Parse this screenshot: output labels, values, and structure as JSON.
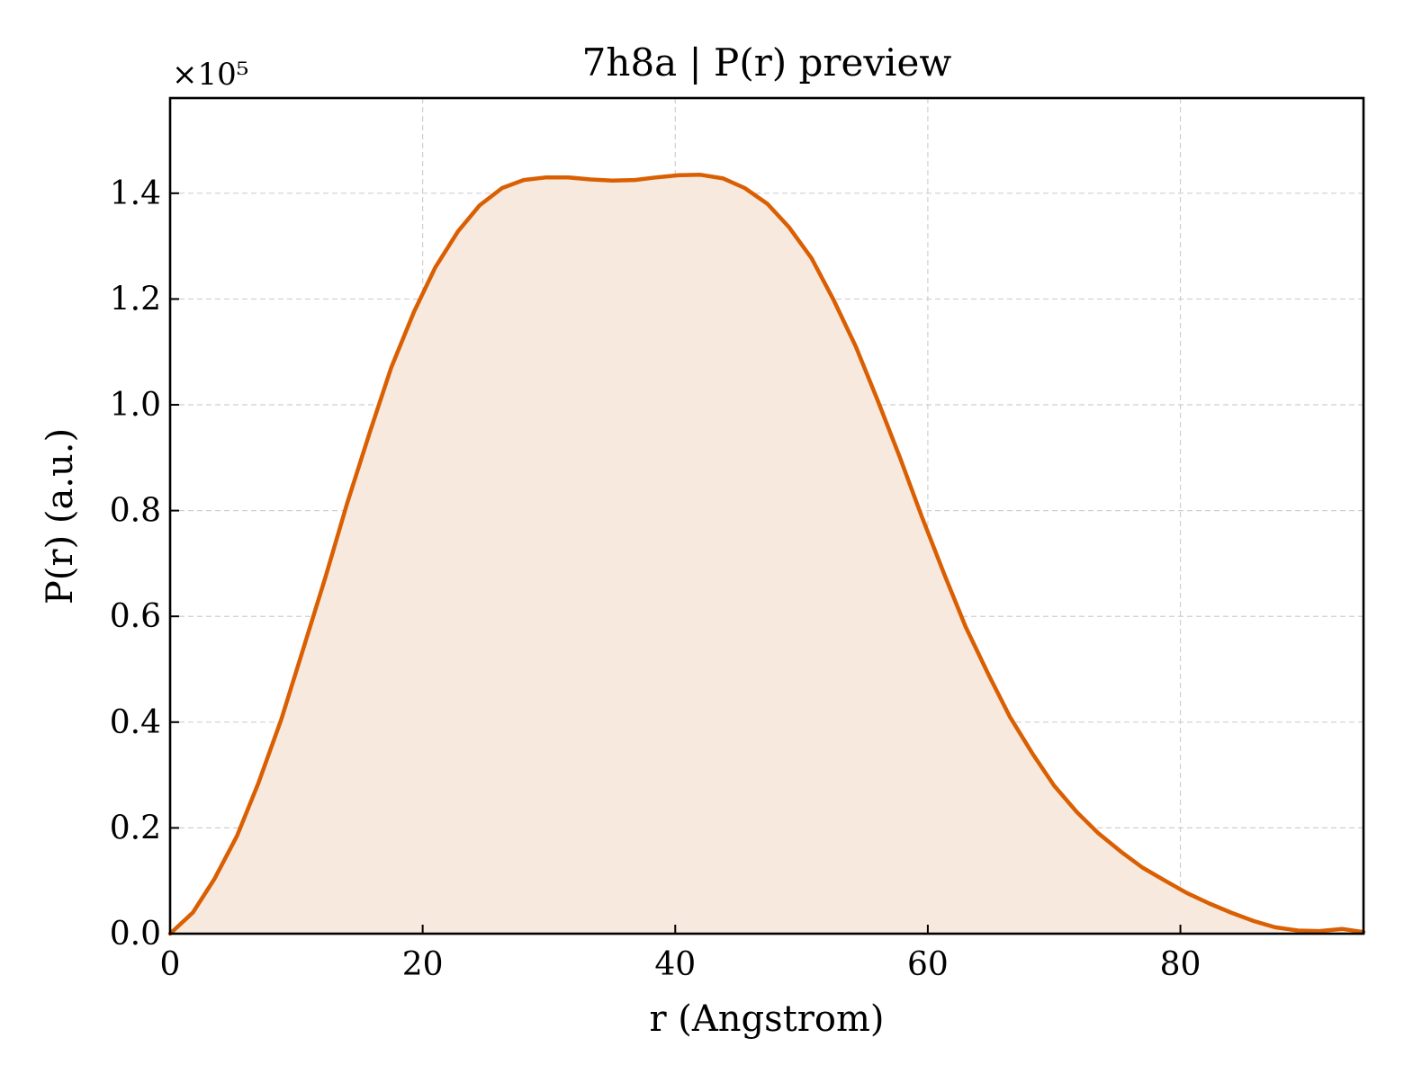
{
  "chart_data": {
    "type": "area",
    "title": "7h8a | P(r) preview",
    "xlabel": "r (Angstrom)",
    "ylabel": "P(r) (a.u.)",
    "y_offset_label": "×10⁵",
    "xlim": [
      0,
      94.5
    ],
    "ylim": [
      0,
      1.58
    ],
    "x_ticks": [
      0,
      20,
      40,
      60,
      80
    ],
    "x_tick_labels": [
      "0",
      "20",
      "40",
      "60",
      "80"
    ],
    "y_ticks": [
      0.0,
      0.2,
      0.4,
      0.6,
      0.8,
      1.0,
      1.2,
      1.4
    ],
    "y_tick_labels": [
      "0.0",
      "0.2",
      "0.4",
      "0.6",
      "0.8",
      "1.0",
      "1.2",
      "1.4"
    ],
    "grid": true,
    "line_color": "#d95f02",
    "fill_color": "#f8e9df",
    "series": [
      {
        "x": [
          0,
          1.8,
          3.5,
          5.3,
          7.0,
          8.8,
          10.5,
          12.3,
          14.0,
          15.8,
          17.5,
          19.3,
          21.0,
          22.8,
          24.5,
          26.3,
          28.0,
          29.8,
          31.5,
          33.3,
          35.0,
          36.8,
          38.5,
          40.3,
          42.0,
          43.8,
          45.5,
          47.3,
          49.0,
          50.8,
          52.5,
          54.3,
          56.0,
          57.8,
          59.5,
          61.3,
          63.0,
          64.8,
          66.5,
          68.3,
          70.0,
          71.8,
          73.5,
          75.3,
          77.0,
          78.8,
          80.5,
          82.3,
          84.0,
          85.8,
          87.5,
          89.3,
          91.0,
          92.8,
          94.5
        ],
        "y": [
          0.0,
          0.04,
          0.103,
          0.185,
          0.285,
          0.405,
          0.535,
          0.674,
          0.812,
          0.947,
          1.07,
          1.175,
          1.26,
          1.328,
          1.377,
          1.41,
          1.425,
          1.43,
          1.43,
          1.426,
          1.424,
          1.425,
          1.43,
          1.434,
          1.435,
          1.428,
          1.41,
          1.38,
          1.336,
          1.277,
          1.2,
          1.11,
          1.01,
          0.9,
          0.79,
          0.68,
          0.58,
          0.49,
          0.41,
          0.34,
          0.28,
          0.23,
          0.19,
          0.155,
          0.125,
          0.1,
          0.077,
          0.057,
          0.04,
          0.024,
          0.012,
          0.006,
          0.005,
          0.009,
          0.003
        ]
      }
    ]
  }
}
